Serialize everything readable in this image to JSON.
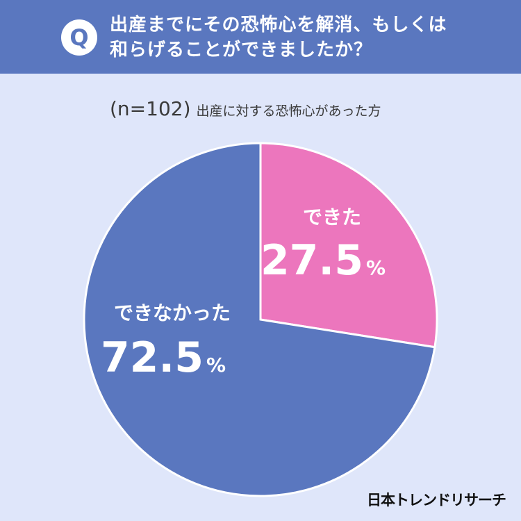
{
  "header": {
    "badge": "Q",
    "question": "出産までにその恐怖心を解消、もしくは\n和らげることができましたか？"
  },
  "subtitle": {
    "n_label": "(n=102)",
    "text": "出産に対する恐怖心があった方"
  },
  "footer": {
    "brand": "日本トレンドリサーチ"
  },
  "colors": {
    "header": "#5a77bf",
    "background": "#dfe6fa"
  },
  "chart_data": {
    "type": "pie",
    "title": "出産までにその恐怖心を解消、もしくは和らげることができましたか？",
    "slices": [
      {
        "label": "できた",
        "value": 27.5,
        "display": "27.5",
        "unit": "%",
        "color": "#ec76bd"
      },
      {
        "label": "できなかった",
        "value": 72.5,
        "display": "72.5",
        "unit": "%",
        "color": "#5a77bf"
      }
    ],
    "start": "12 o'clock",
    "direction": "clockwise"
  }
}
